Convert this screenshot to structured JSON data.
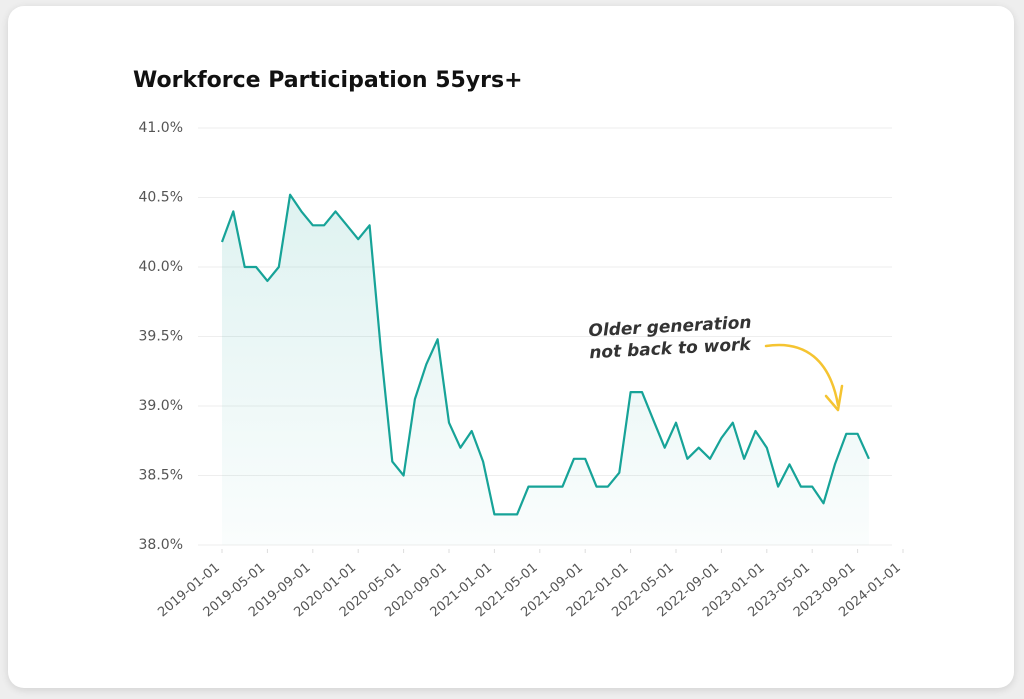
{
  "chart_data": {
    "type": "line",
    "title": "Workforce Participation 55yrs+",
    "annotation": [
      "Older generation",
      "not back to work"
    ],
    "x": [
      "2019-01-01",
      "2019-02-01",
      "2019-03-01",
      "2019-04-01",
      "2019-05-01",
      "2019-06-01",
      "2019-07-01",
      "2019-08-01",
      "2019-09-01",
      "2019-10-01",
      "2019-11-01",
      "2019-12-01",
      "2020-01-01",
      "2020-02-01",
      "2020-03-01",
      "2020-04-01",
      "2020-05-01",
      "2020-06-01",
      "2020-07-01",
      "2020-08-01",
      "2020-09-01",
      "2020-10-01",
      "2020-11-01",
      "2020-12-01",
      "2021-01-01",
      "2021-02-01",
      "2021-03-01",
      "2021-04-01",
      "2021-05-01",
      "2021-06-01",
      "2021-07-01",
      "2021-08-01",
      "2021-09-01",
      "2021-10-01",
      "2021-11-01",
      "2021-12-01",
      "2022-01-01",
      "2022-02-01",
      "2022-03-01",
      "2022-04-01",
      "2022-05-01",
      "2022-06-01",
      "2022-07-01",
      "2022-08-01",
      "2022-09-01",
      "2022-10-01",
      "2022-11-01",
      "2022-12-01",
      "2023-01-01",
      "2023-02-01",
      "2023-03-01",
      "2023-04-01",
      "2023-05-01",
      "2023-06-01",
      "2023-07-01",
      "2023-08-01",
      "2023-09-01",
      "2023-10-01"
    ],
    "values": [
      40.18,
      40.4,
      40.0,
      40.0,
      39.9,
      40.0,
      40.52,
      40.4,
      40.3,
      40.3,
      40.4,
      40.3,
      40.2,
      40.3,
      39.4,
      38.6,
      38.5,
      39.05,
      39.3,
      39.48,
      38.88,
      38.7,
      38.82,
      38.6,
      38.22,
      38.22,
      38.22,
      38.42,
      38.42,
      38.42,
      38.42,
      38.62,
      38.62,
      38.42,
      38.42,
      38.52,
      39.1,
      39.1,
      38.9,
      38.7,
      38.88,
      38.62,
      38.7,
      38.62,
      38.77,
      38.88,
      38.62,
      38.82,
      38.7,
      38.42,
      38.58,
      38.42,
      38.42,
      38.3,
      38.58,
      38.8,
      38.8,
      38.62
    ],
    "color": "#17a398",
    "xlim": [
      "2019-01-01",
      "2024-01-01"
    ],
    "xticks": [
      "2019-01-01",
      "2019-05-01",
      "2019-09-01",
      "2020-01-01",
      "2020-05-01",
      "2020-09-01",
      "2021-01-01",
      "2021-05-01",
      "2021-09-01",
      "2022-01-01",
      "2022-05-01",
      "2022-09-01",
      "2023-01-01",
      "2023-05-01",
      "2023-09-01",
      "2024-01-01"
    ],
    "ylim": [
      38,
      41
    ],
    "yticks": [
      {
        "value": 38,
        "label": "38.0%"
      },
      {
        "value": 38.5,
        "label": "38.5%"
      },
      {
        "value": 39,
        "label": "39.0%"
      },
      {
        "value": 39.5,
        "label": "39.5%"
      },
      {
        "value": 40,
        "label": "40.0%"
      },
      {
        "value": 40.5,
        "label": "40.5%"
      },
      {
        "value": 41,
        "label": "41.0%"
      }
    ],
    "grid": true
  }
}
